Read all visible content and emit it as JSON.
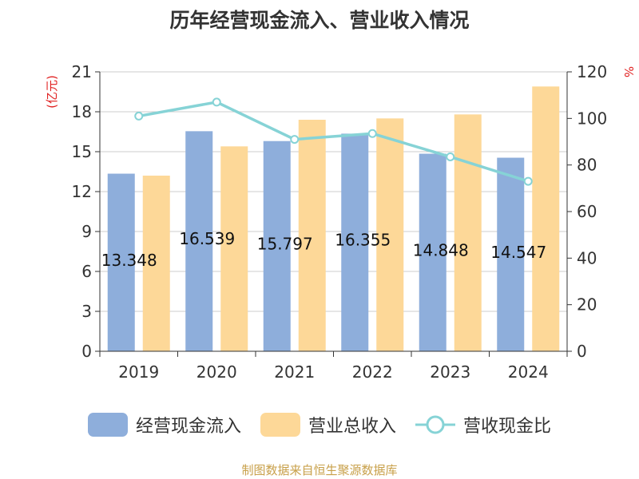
{
  "chart_data": {
    "type": "bar",
    "title": "历年经营现金流入、营业收入情况",
    "categories": [
      "2019",
      "2020",
      "2021",
      "2022",
      "2023",
      "2024"
    ],
    "series": [
      {
        "name": "经营现金流入",
        "type": "bar",
        "axis": "left",
        "color": "#8eaedb",
        "values": [
          13.348,
          16.539,
          15.797,
          16.355,
          14.848,
          14.547
        ]
      },
      {
        "name": "营业总收入",
        "type": "bar",
        "axis": "left",
        "color": "#fdd898",
        "values": [
          13.2,
          15.4,
          17.4,
          17.5,
          17.8,
          19.9
        ]
      },
      {
        "name": "营收现金比",
        "type": "line",
        "axis": "right",
        "color": "#86d3d6",
        "values": [
          101,
          107,
          91,
          93.5,
          83.5,
          73
        ]
      }
    ],
    "data_labels": [
      "13.348",
      "16.539",
      "15.797",
      "16.355",
      "14.848",
      "14.547"
    ],
    "y_left": {
      "label": "(亿元)",
      "ylim": [
        0,
        21
      ],
      "ticks": [
        "0",
        "3",
        "6",
        "9",
        "12",
        "15",
        "18",
        "21"
      ]
    },
    "y_right": {
      "label": "%",
      "ylim": [
        0,
        120
      ],
      "ticks": [
        "0",
        "20",
        "40",
        "60",
        "80",
        "100",
        "120"
      ]
    },
    "grid": true,
    "legend_position": "bottom"
  },
  "source": "制图数据来自恒生聚源数据库"
}
